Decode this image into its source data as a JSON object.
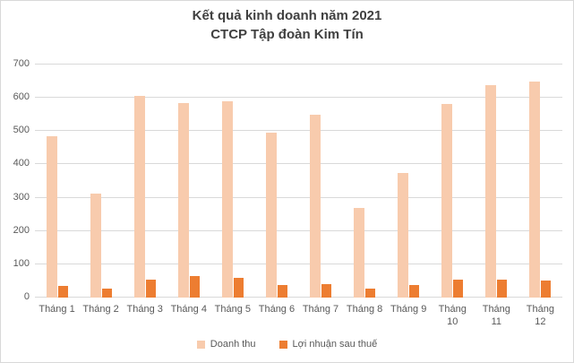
{
  "header": {
    "title_line1": "Kết quả kinh doanh năm 2021",
    "title_line2": "CTCP Tập đoàn Kim Tín"
  },
  "colors": {
    "revenue": "#f8cbad",
    "profit": "#ed7d31",
    "gridline": "#d9d9d9",
    "title_text": "#404040",
    "axis_text": "#595959",
    "frame_border": "#d9d9d9"
  },
  "chart_data": {
    "type": "bar",
    "title": "Kết quả kinh doanh năm 2021 CTCP Tập đoàn Kim Tín",
    "categories": [
      "Tháng 1",
      "Tháng 2",
      "Tháng 3",
      "Tháng 4",
      "Tháng 5",
      "Tháng 6",
      "Tháng 7",
      "Tháng 8",
      "Tháng 9",
      "Tháng 10",
      "Tháng 11",
      "Tháng 12"
    ],
    "x_tick_labels": [
      "Tháng 1",
      "Tháng 2",
      "Tháng 3",
      "Tháng 4",
      "Tháng 5",
      "Tháng 6",
      "Tháng 7",
      "Tháng 8",
      "Tháng 9",
      "Tháng\n10",
      "Tháng\n11",
      "Tháng\n12"
    ],
    "series": [
      {
        "name": "Doanh thu",
        "color": "#f8cbad",
        "values": [
          485,
          313,
          605,
          585,
          591,
          495,
          548,
          270,
          374,
          581,
          639,
          648
        ]
      },
      {
        "name": "Lợi nhuận sau thuế",
        "color": "#ed7d31",
        "values": [
          35,
          27,
          55,
          64,
          60,
          38,
          40,
          27,
          38,
          54,
          53,
          50
        ]
      }
    ],
    "xlabel": "",
    "ylabel": "",
    "ylim": [
      0,
      700
    ],
    "yticks": [
      0,
      100,
      200,
      300,
      400,
      500,
      600,
      700
    ],
    "grid": true,
    "legend_position": "bottom"
  }
}
